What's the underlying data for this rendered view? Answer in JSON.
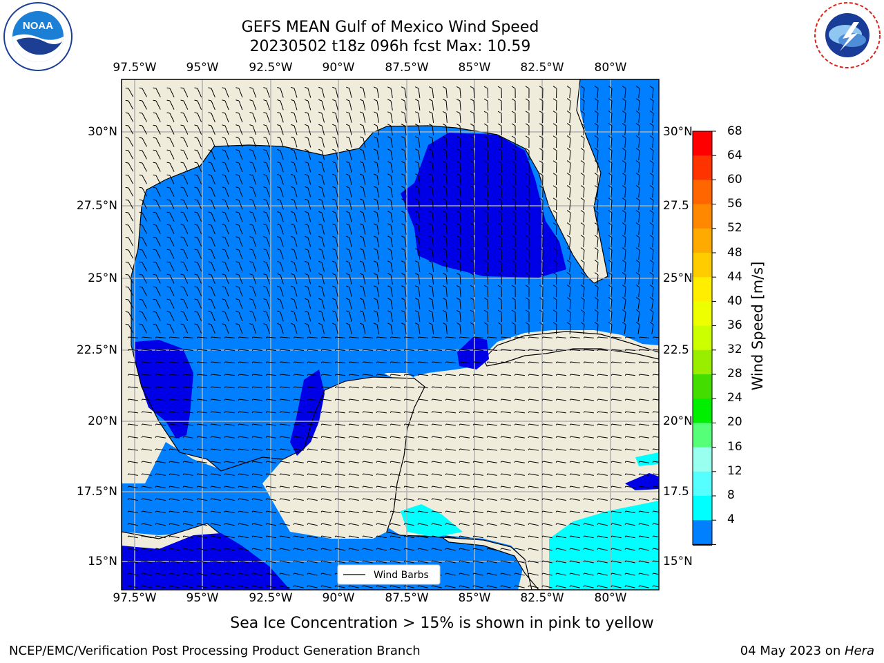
{
  "title": {
    "line1": "GEFS MEAN Gulf of Mexico Wind Speed",
    "line2": "20230502 t18z 096h fcst   Max: 10.59"
  },
  "logos": {
    "left_text": "NOAA",
    "left_ring_text": "NATIONAL OCEANIC AND ATMOSPHERIC ADMINISTRATION • U.S. DEPARTMENT OF COMMERCE",
    "right_ring_text": "NATIONAL WEATHER SERVICE"
  },
  "map": {
    "lon_labels": [
      "97.5°W",
      "95°W",
      "92.5°W",
      "90°W",
      "87.5°W",
      "85°W",
      "82.5°W",
      "80°W"
    ],
    "lat_labels_left": [
      "30°N",
      "27.5°N",
      "25°N",
      "22.5°N",
      "20°N",
      "17.5°N",
      "15°N"
    ],
    "lat_labels_right": [
      "30°N",
      "27.5",
      "25°N",
      "22.5",
      "20°N",
      "17.5",
      "15°N"
    ],
    "extent": {
      "lon": [
        -98.0,
        -78.2
      ],
      "lat": [
        14.0,
        31.8
      ]
    },
    "legend_label": "Wind Barbs",
    "land_color": "#efecdc",
    "ocean_color": "#0080ff",
    "max_wind_color": "#0000e6",
    "cyan_color": "#00ffff",
    "grid_color": "#b0b0b0"
  },
  "colorbar": {
    "label": "Wind Speed [m/s]",
    "ticks": [
      "68",
      "64",
      "60",
      "56",
      "52",
      "48",
      "44",
      "40",
      "36",
      "32",
      "28",
      "24",
      "20",
      "16",
      "12",
      "8",
      "4"
    ],
    "colors": [
      "#ff0000",
      "#ff3300",
      "#ff6600",
      "#ff8800",
      "#ffaa00",
      "#ffcc00",
      "#ffee00",
      "#eeff00",
      "#ccff00",
      "#99ee00",
      "#44dd00",
      "#00ee00",
      "#55ff77",
      "#99ffee",
      "#55ffff",
      "#00ffff",
      "#0080ff"
    ],
    "extend_color": "#0000e6"
  },
  "subtitle": "Sea Ice Concentration > 15% is shown in pink to yellow",
  "footer": {
    "left": "NCEP/EMC/Verification Post Processing Product Generation Branch",
    "date": "04 May 2023 on ",
    "host": "Hera"
  }
}
